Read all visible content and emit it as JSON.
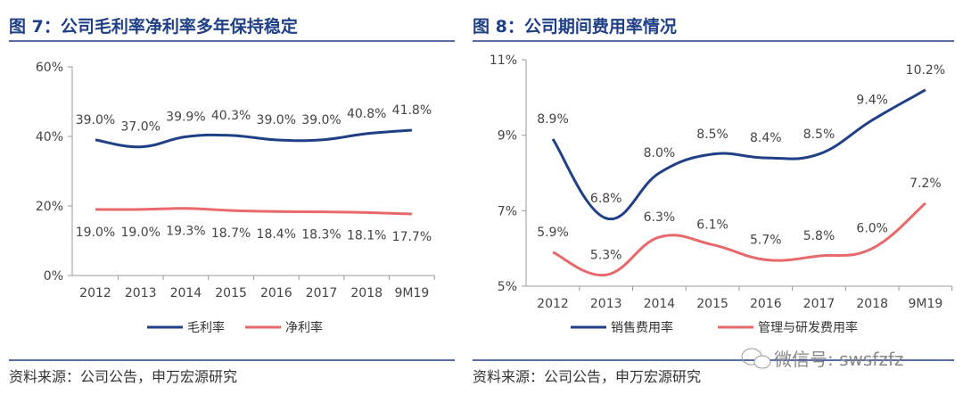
{
  "chart_data": [
    {
      "type": "line",
      "title": "图 7：公司毛利率净利率多年保持稳定",
      "categories": [
        "2012",
        "2013",
        "2014",
        "2015",
        "2016",
        "2017",
        "2018",
        "9M19"
      ],
      "ylim": [
        0,
        60
      ],
      "yticks": [
        "0%",
        "20%",
        "40%",
        "60%"
      ],
      "ytick_values": [
        0,
        20,
        40,
        60
      ],
      "series": [
        {
          "name": "毛利率",
          "color": "#1f3f86",
          "values": [
            39.0,
            37.0,
            39.9,
            40.3,
            39.0,
            39.0,
            40.8,
            41.8
          ],
          "labels": [
            "39.0%",
            "37.0%",
            "39.9%",
            "40.3%",
            "39.0%",
            "39.0%",
            "40.8%",
            "41.8%"
          ],
          "label_pos": "above"
        },
        {
          "name": "净利率",
          "color": "#e8696b",
          "values": [
            19.0,
            19.0,
            19.3,
            18.7,
            18.4,
            18.3,
            18.1,
            17.7
          ],
          "labels": [
            "19.0%",
            "19.0%",
            "19.3%",
            "18.7%",
            "18.4%",
            "18.3%",
            "18.1%",
            "17.7%"
          ],
          "label_pos": "below"
        }
      ],
      "legend": "bottom",
      "grid": false,
      "source": "资料来源：公司公告，申万宏源研究"
    },
    {
      "type": "line",
      "title": "图 8：公司期间费用率情况",
      "categories": [
        "2012",
        "2013",
        "2014",
        "2015",
        "2016",
        "2017",
        "2018",
        "9M19"
      ],
      "ylim": [
        5,
        11
      ],
      "yticks": [
        "5%",
        "7%",
        "9%",
        "11%"
      ],
      "ytick_values": [
        5,
        7,
        9,
        11
      ],
      "series": [
        {
          "name": "销售费用率",
          "color": "#1f3f86",
          "values": [
            8.9,
            6.8,
            8.0,
            8.5,
            8.4,
            8.5,
            9.4,
            10.2
          ],
          "labels": [
            "8.9%",
            "6.8%",
            "8.0%",
            "8.5%",
            "8.4%",
            "8.5%",
            "9.4%",
            "10.2%"
          ],
          "label_pos": "above"
        },
        {
          "name": "管理与研发费用率",
          "color": "#e8696b",
          "values": [
            5.9,
            5.3,
            6.3,
            6.1,
            5.7,
            5.8,
            6.0,
            7.2
          ],
          "labels": [
            "5.9%",
            "5.3%",
            "6.3%",
            "6.1%",
            "5.7%",
            "5.8%",
            "6.0%",
            "7.2%"
          ],
          "label_pos": "above"
        }
      ],
      "legend": "bottom",
      "grid": false,
      "source": "资料来源：公司公告，申万宏源研究"
    }
  ],
  "watermark": "微信号: swsfzfz"
}
